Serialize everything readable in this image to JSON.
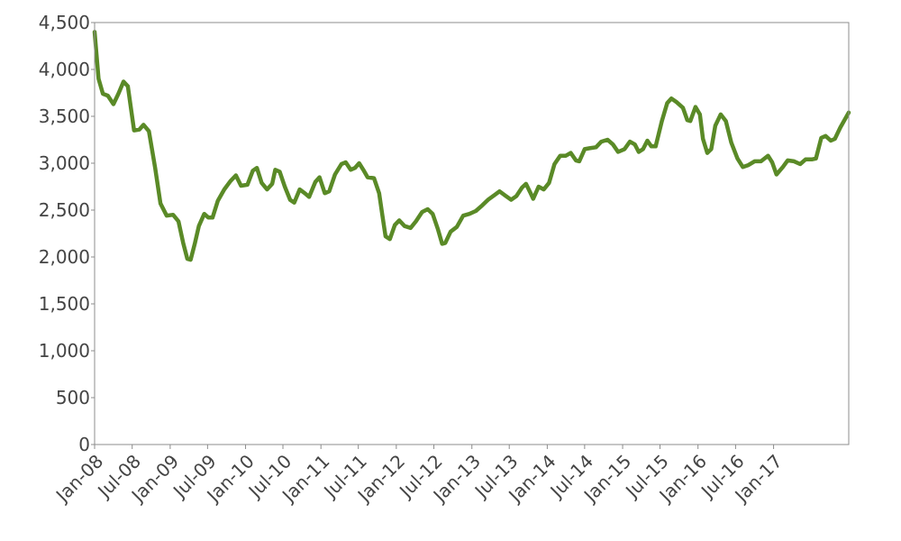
{
  "chart_data": {
    "type": "line",
    "title": "",
    "xlabel": "",
    "ylabel": "",
    "ylim": [
      0,
      4500
    ],
    "xlim": [
      "2008-01-01",
      "2017-12-31"
    ],
    "grid": false,
    "legend": "none",
    "colors": {
      "line": "#5a8a27",
      "axis": "#8c8c8c",
      "text": "#444444"
    },
    "y_ticks": [
      {
        "value": 0,
        "label": "0"
      },
      {
        "value": 500,
        "label": "500"
      },
      {
        "value": 1000,
        "label": "1,000"
      },
      {
        "value": 1500,
        "label": "1,500"
      },
      {
        "value": 2000,
        "label": "2,000"
      },
      {
        "value": 2500,
        "label": "2,500"
      },
      {
        "value": 3000,
        "label": "3,000"
      },
      {
        "value": 3500,
        "label": "3,500"
      },
      {
        "value": 4000,
        "label": "4,000"
      },
      {
        "value": 4500,
        "label": "4,500"
      }
    ],
    "x_ticks": [
      {
        "value": "2008-01-01",
        "label": "Jan-08"
      },
      {
        "value": "2008-07-01",
        "label": "Jul-08"
      },
      {
        "value": "2009-01-01",
        "label": "Jan-09"
      },
      {
        "value": "2009-07-01",
        "label": "Jul-09"
      },
      {
        "value": "2010-01-01",
        "label": "Jan-10"
      },
      {
        "value": "2010-07-01",
        "label": "Jul-10"
      },
      {
        "value": "2011-01-01",
        "label": "Jan-11"
      },
      {
        "value": "2011-07-01",
        "label": "Jul-11"
      },
      {
        "value": "2012-01-01",
        "label": "Jan-12"
      },
      {
        "value": "2012-07-01",
        "label": "Jul-12"
      },
      {
        "value": "2013-01-01",
        "label": "Jan-13"
      },
      {
        "value": "2013-07-01",
        "label": "Jul-13"
      },
      {
        "value": "2014-01-01",
        "label": "Jan-14"
      },
      {
        "value": "2014-07-01",
        "label": "Jul-14"
      },
      {
        "value": "2015-01-01",
        "label": "Jan-15"
      },
      {
        "value": "2015-07-01",
        "label": "Jul-15"
      },
      {
        "value": "2016-01-01",
        "label": "Jan-16"
      },
      {
        "value": "2016-07-01",
        "label": "Jul-16"
      },
      {
        "value": "2017-01-01",
        "label": "Jan-17"
      }
    ],
    "series": [
      {
        "values": [
          [
            "2008-01-01",
            4400
          ],
          [
            "2008-01-20",
            3900
          ],
          [
            "2008-02-10",
            3740
          ],
          [
            "2008-03-05",
            3720
          ],
          [
            "2008-04-01",
            3630
          ],
          [
            "2008-04-25",
            3740
          ],
          [
            "2008-05-20",
            3870
          ],
          [
            "2008-06-10",
            3820
          ],
          [
            "2008-07-10",
            3350
          ],
          [
            "2008-08-05",
            3360
          ],
          [
            "2008-08-25",
            3410
          ],
          [
            "2008-09-20",
            3340
          ],
          [
            "2008-10-20",
            2950
          ],
          [
            "2008-11-15",
            2570
          ],
          [
            "2008-12-15",
            2440
          ],
          [
            "2009-01-15",
            2450
          ],
          [
            "2009-02-10",
            2380
          ],
          [
            "2009-03-05",
            2150
          ],
          [
            "2009-03-25",
            1980
          ],
          [
            "2009-04-10",
            1970
          ],
          [
            "2009-05-01",
            2150
          ],
          [
            "2009-05-20",
            2330
          ],
          [
            "2009-06-15",
            2460
          ],
          [
            "2009-07-05",
            2420
          ],
          [
            "2009-07-25",
            2420
          ],
          [
            "2009-08-20",
            2600
          ],
          [
            "2009-09-20",
            2720
          ],
          [
            "2009-10-20",
            2810
          ],
          [
            "2009-11-15",
            2870
          ],
          [
            "2009-12-10",
            2760
          ],
          [
            "2010-01-10",
            2770
          ],
          [
            "2010-02-05",
            2920
          ],
          [
            "2010-02-25",
            2950
          ],
          [
            "2010-03-20",
            2790
          ],
          [
            "2010-04-15",
            2720
          ],
          [
            "2010-05-10",
            2780
          ],
          [
            "2010-05-25",
            2930
          ],
          [
            "2010-06-15",
            2910
          ],
          [
            "2010-07-10",
            2750
          ],
          [
            "2010-08-05",
            2610
          ],
          [
            "2010-08-25",
            2580
          ],
          [
            "2010-09-20",
            2720
          ],
          [
            "2010-10-15",
            2680
          ],
          [
            "2010-11-05",
            2640
          ],
          [
            "2010-12-05",
            2800
          ],
          [
            "2010-12-25",
            2850
          ],
          [
            "2011-01-20",
            2680
          ],
          [
            "2011-02-10",
            2700
          ],
          [
            "2011-03-10",
            2880
          ],
          [
            "2011-04-10",
            2990
          ],
          [
            "2011-05-01",
            3010
          ],
          [
            "2011-05-25",
            2930
          ],
          [
            "2011-06-15",
            2950
          ],
          [
            "2011-07-05",
            3000
          ],
          [
            "2011-07-25",
            2930
          ],
          [
            "2011-08-15",
            2850
          ],
          [
            "2011-09-15",
            2840
          ],
          [
            "2011-10-10",
            2680
          ],
          [
            "2011-10-25",
            2450
          ],
          [
            "2011-11-10",
            2220
          ],
          [
            "2011-12-01",
            2190
          ],
          [
            "2011-12-25",
            2340
          ],
          [
            "2012-01-15",
            2390
          ],
          [
            "2012-02-10",
            2330
          ],
          [
            "2012-03-10",
            2310
          ],
          [
            "2012-04-05",
            2380
          ],
          [
            "2012-05-05",
            2480
          ],
          [
            "2012-06-01",
            2510
          ],
          [
            "2012-06-25",
            2460
          ],
          [
            "2012-07-20",
            2300
          ],
          [
            "2012-08-10",
            2140
          ],
          [
            "2012-08-25",
            2150
          ],
          [
            "2012-09-20",
            2270
          ],
          [
            "2012-10-20",
            2320
          ],
          [
            "2012-11-20",
            2440
          ],
          [
            "2012-12-20",
            2460
          ],
          [
            "2013-01-20",
            2490
          ],
          [
            "2013-02-20",
            2550
          ],
          [
            "2013-03-20",
            2610
          ],
          [
            "2013-04-20",
            2660
          ],
          [
            "2013-05-15",
            2700
          ],
          [
            "2013-06-15",
            2650
          ],
          [
            "2013-07-10",
            2610
          ],
          [
            "2013-08-05",
            2650
          ],
          [
            "2013-09-01",
            2740
          ],
          [
            "2013-09-20",
            2780
          ],
          [
            "2013-10-10",
            2690
          ],
          [
            "2013-10-25",
            2620
          ],
          [
            "2013-11-20",
            2750
          ],
          [
            "2013-12-15",
            2720
          ],
          [
            "2014-01-10",
            2790
          ],
          [
            "2014-02-05",
            2990
          ],
          [
            "2014-03-05",
            3080
          ],
          [
            "2014-04-01",
            3080
          ],
          [
            "2014-04-25",
            3110
          ],
          [
            "2014-05-20",
            3030
          ],
          [
            "2014-06-05",
            3020
          ],
          [
            "2014-07-01",
            3150
          ],
          [
            "2014-07-25",
            3160
          ],
          [
            "2014-08-25",
            3170
          ],
          [
            "2014-09-20",
            3230
          ],
          [
            "2014-10-20",
            3250
          ],
          [
            "2014-11-15",
            3200
          ],
          [
            "2014-12-10",
            3120
          ],
          [
            "2015-01-10",
            3150
          ],
          [
            "2015-02-05",
            3230
          ],
          [
            "2015-03-01",
            3200
          ],
          [
            "2015-03-20",
            3120
          ],
          [
            "2015-04-10",
            3150
          ],
          [
            "2015-05-01",
            3240
          ],
          [
            "2015-05-20",
            3180
          ],
          [
            "2015-06-10",
            3180
          ],
          [
            "2015-07-10",
            3450
          ],
          [
            "2015-08-05",
            3640
          ],
          [
            "2015-08-25",
            3690
          ],
          [
            "2015-09-20",
            3650
          ],
          [
            "2015-10-20",
            3590
          ],
          [
            "2015-11-10",
            3460
          ],
          [
            "2015-11-25",
            3450
          ],
          [
            "2015-12-20",
            3600
          ],
          [
            "2016-01-10",
            3520
          ],
          [
            "2016-01-25",
            3260
          ],
          [
            "2016-02-15",
            3110
          ],
          [
            "2016-03-05",
            3150
          ],
          [
            "2016-03-25",
            3400
          ],
          [
            "2016-04-20",
            3520
          ],
          [
            "2016-05-15",
            3450
          ],
          [
            "2016-06-10",
            3220
          ],
          [
            "2016-07-10",
            3050
          ],
          [
            "2016-08-05",
            2960
          ],
          [
            "2016-09-01",
            2980
          ],
          [
            "2016-10-01",
            3020
          ],
          [
            "2016-11-01",
            3020
          ],
          [
            "2016-12-05",
            3080
          ],
          [
            "2016-12-25",
            3010
          ],
          [
            "2017-01-15",
            2880
          ],
          [
            "2017-02-15",
            2960
          ],
          [
            "2017-03-10",
            3030
          ],
          [
            "2017-04-10",
            3020
          ],
          [
            "2017-05-10",
            2990
          ],
          [
            "2017-06-05",
            3040
          ],
          [
            "2017-07-05",
            3040
          ],
          [
            "2017-07-25",
            3050
          ],
          [
            "2017-08-20",
            3270
          ],
          [
            "2017-09-10",
            3290
          ],
          [
            "2017-10-05",
            3240
          ],
          [
            "2017-10-25",
            3260
          ],
          [
            "2017-11-20",
            3380
          ],
          [
            "2017-12-31",
            3540
          ]
        ]
      }
    ]
  }
}
